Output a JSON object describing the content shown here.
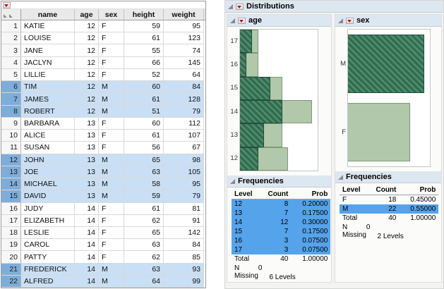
{
  "colors": {
    "row_selection": "#c9dff5",
    "row_number_selection": "#7fadd9",
    "freq_selection": "#55a3eb",
    "bar_fill": "#b2c8ab",
    "bar_border": "#7c997a",
    "bar_selected": "#2f6b4e",
    "bar_selected_stripe": "#4f8a6b",
    "outline_band": "#dde7f1",
    "red_triangle": "#c11111"
  },
  "data_grid": {
    "columns": [
      "name",
      "age",
      "sex",
      "height",
      "weight"
    ],
    "rows": [
      {
        "n": "1",
        "name": "KATIE",
        "age": "12",
        "sex": "F",
        "height": "59",
        "weight": "95",
        "selected": false
      },
      {
        "n": "2",
        "name": "LOUISE",
        "age": "12",
        "sex": "F",
        "height": "61",
        "weight": "123",
        "selected": false
      },
      {
        "n": "3",
        "name": "JANE",
        "age": "12",
        "sex": "F",
        "height": "55",
        "weight": "74",
        "selected": false
      },
      {
        "n": "4",
        "name": "JACLYN",
        "age": "12",
        "sex": "F",
        "height": "66",
        "weight": "145",
        "selected": false
      },
      {
        "n": "5",
        "name": "LILLIE",
        "age": "12",
        "sex": "F",
        "height": "52",
        "weight": "64",
        "selected": false
      },
      {
        "n": "6",
        "name": "TIM",
        "age": "12",
        "sex": "M",
        "height": "60",
        "weight": "84",
        "selected": true
      },
      {
        "n": "7",
        "name": "JAMES",
        "age": "12",
        "sex": "M",
        "height": "61",
        "weight": "128",
        "selected": true
      },
      {
        "n": "8",
        "name": "ROBERT",
        "age": "12",
        "sex": "M",
        "height": "51",
        "weight": "79",
        "selected": true
      },
      {
        "n": "9",
        "name": "BARBARA",
        "age": "13",
        "sex": "F",
        "height": "60",
        "weight": "112",
        "selected": false
      },
      {
        "n": "10",
        "name": "ALICE",
        "age": "13",
        "sex": "F",
        "height": "61",
        "weight": "107",
        "selected": false
      },
      {
        "n": "11",
        "name": "SUSAN",
        "age": "13",
        "sex": "F",
        "height": "56",
        "weight": "67",
        "selected": false
      },
      {
        "n": "12",
        "name": "JOHN",
        "age": "13",
        "sex": "M",
        "height": "65",
        "weight": "98",
        "selected": true
      },
      {
        "n": "13",
        "name": "JOE",
        "age": "13",
        "sex": "M",
        "height": "63",
        "weight": "105",
        "selected": true
      },
      {
        "n": "14",
        "name": "MICHAEL",
        "age": "13",
        "sex": "M",
        "height": "58",
        "weight": "95",
        "selected": true
      },
      {
        "n": "15",
        "name": "DAVID",
        "age": "13",
        "sex": "M",
        "height": "59",
        "weight": "79",
        "selected": true
      },
      {
        "n": "16",
        "name": "JUDY",
        "age": "14",
        "sex": "F",
        "height": "61",
        "weight": "81",
        "selected": false
      },
      {
        "n": "17",
        "name": "ELIZABETH",
        "age": "14",
        "sex": "F",
        "height": "62",
        "weight": "91",
        "selected": false
      },
      {
        "n": "18",
        "name": "LESLIE",
        "age": "14",
        "sex": "F",
        "height": "65",
        "weight": "142",
        "selected": false
      },
      {
        "n": "19",
        "name": "CAROL",
        "age": "14",
        "sex": "F",
        "height": "63",
        "weight": "84",
        "selected": false
      },
      {
        "n": "20",
        "name": "PATTY",
        "age": "14",
        "sex": "F",
        "height": "62",
        "weight": "85",
        "selected": false
      },
      {
        "n": "21",
        "name": "FREDERICK",
        "age": "14",
        "sex": "M",
        "height": "63",
        "weight": "93",
        "selected": true
      },
      {
        "n": "22",
        "name": "ALFRED",
        "age": "14",
        "sex": "M",
        "height": "64",
        "weight": "99",
        "selected": true
      }
    ]
  },
  "report": {
    "title": "Distributions",
    "age": {
      "title": "age",
      "frequencies_title": "Frequencies",
      "freq": {
        "headers": [
          "Level",
          "Count",
          "Prob"
        ],
        "rows": [
          {
            "level": "12",
            "count": "8",
            "prob": "0.20000",
            "selected": true
          },
          {
            "level": "13",
            "count": "7",
            "prob": "0.17500",
            "selected": true
          },
          {
            "level": "14",
            "count": "12",
            "prob": "0.30000",
            "selected": true
          },
          {
            "level": "15",
            "count": "7",
            "prob": "0.17500",
            "selected": true
          },
          {
            "level": "16",
            "count": "3",
            "prob": "0.07500",
            "selected": true
          },
          {
            "level": "17",
            "count": "3",
            "prob": "0.07500",
            "selected": true
          }
        ],
        "total": {
          "label": "Total",
          "count": "40",
          "prob": "1.00000"
        },
        "n_missing": {
          "label": "N Missing",
          "value": "0"
        },
        "levels_note": "6 Levels"
      }
    },
    "sex": {
      "title": "sex",
      "frequencies_title": "Frequencies",
      "freq": {
        "headers": [
          "Level",
          "Count",
          "Prob"
        ],
        "rows": [
          {
            "level": "F",
            "count": "18",
            "prob": "0.45000",
            "selected": false
          },
          {
            "level": "M",
            "count": "22",
            "prob": "0.55000",
            "selected": true
          }
        ],
        "total": {
          "label": "Total",
          "count": "40",
          "prob": "1.00000"
        },
        "n_missing": {
          "label": "N Missing",
          "value": "0"
        },
        "levels_note": "2 Levels"
      }
    }
  },
  "chart_data": [
    {
      "type": "bar",
      "orientation": "horizontal",
      "title": "age",
      "categories": [
        "17",
        "16",
        "15",
        "14",
        "13",
        "12"
      ],
      "values": [
        3,
        3,
        7,
        12,
        7,
        8
      ],
      "selected_values": [
        2,
        1,
        5,
        7,
        4,
        3
      ],
      "xlim": [
        0,
        12
      ],
      "ylabel": "age",
      "legend": "none",
      "note": "hatched dark-green portion = currently selected (male) rows"
    },
    {
      "type": "bar",
      "orientation": "horizontal",
      "title": "sex",
      "categories": [
        "M",
        "F"
      ],
      "values": [
        22,
        18
      ],
      "selected_values": [
        22,
        0
      ],
      "xlim": [
        0,
        22
      ],
      "ylabel": "sex",
      "legend": "none",
      "note": "M bar fully hatched = all males selected"
    }
  ]
}
